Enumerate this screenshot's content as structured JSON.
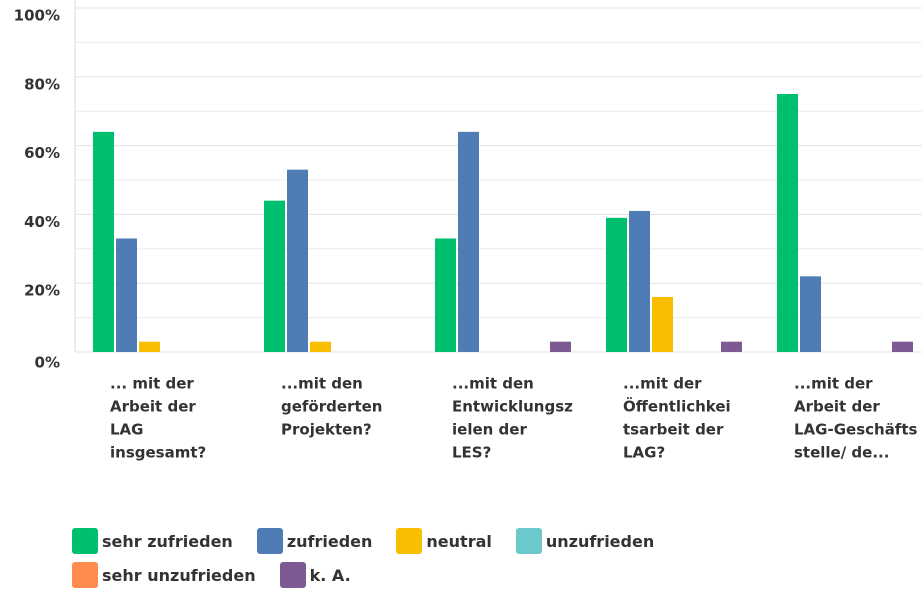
{
  "chart_data": {
    "type": "bar",
    "categories": [
      [
        "... mit der",
        "Arbeit der",
        "LAG",
        "insgesamt?"
      ],
      [
        "...mit den",
        "geförderten",
        "Projekten?"
      ],
      [
        "...mit den",
        "Entwicklungsz",
        "ielen der",
        "LES?"
      ],
      [
        "...mit der",
        "Öffentlichkei",
        "tsarbeit der",
        "LAG?"
      ],
      [
        "...mit der",
        "Arbeit der",
        "LAG-Geschäfts",
        "stelle/ de..."
      ]
    ],
    "series": [
      {
        "name": "sehr zufrieden",
        "color": "#00bf6f",
        "values": [
          64,
          44,
          33,
          39,
          75
        ]
      },
      {
        "name": "zufrieden",
        "color": "#507cb6",
        "values": [
          33,
          53,
          64,
          41,
          22
        ]
      },
      {
        "name": "neutral",
        "color": "#f9be00",
        "values": [
          3,
          3,
          0,
          16,
          0
        ]
      },
      {
        "name": "unzufrieden",
        "color": "#6bc8cd",
        "values": [
          0,
          0,
          0,
          0,
          0
        ]
      },
      {
        "name": "sehr unzufrieden",
        "color": "#ff8b4f",
        "values": [
          0,
          0,
          0,
          0,
          0
        ]
      },
      {
        "name": "k. A.",
        "color": "#7d5a94",
        "values": [
          0,
          0,
          3,
          3,
          3
        ]
      }
    ],
    "ylim": [
      0,
      100
    ],
    "yticks": [
      {
        "value": 0,
        "label": "0%"
      },
      {
        "value": 20,
        "label": "20%"
      },
      {
        "value": 40,
        "label": "40%"
      },
      {
        "value": 60,
        "label": "60%"
      },
      {
        "value": 80,
        "label": "80%"
      },
      {
        "value": 100,
        "label": "100%"
      }
    ],
    "minor_yticks": [
      10,
      30,
      50,
      70,
      90
    ],
    "grid": true
  }
}
